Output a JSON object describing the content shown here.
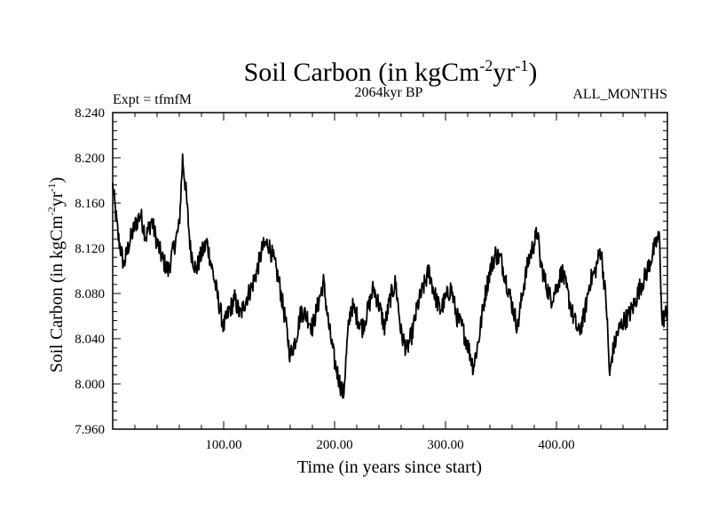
{
  "chart_data": {
    "type": "line",
    "title": {
      "main": "Soil Carbon (in kgCm",
      "sup1": "-2",
      "mid": "yr",
      "sup2": "-1",
      "close": ")"
    },
    "subtitle_left": "Expt = tfmfM",
    "subtitle_center": "2064kyr BP",
    "subtitle_right": "ALL_MONTHS",
    "xlabel": "Time (in years since start)",
    "ylabel": {
      "main": "Soil Carbon (in kgCm",
      "sup1": "-2",
      "mid": "yr",
      "sup2": "-1",
      "close": ")"
    },
    "xlim": [
      0,
      500
    ],
    "ylim": [
      7.96,
      8.24
    ],
    "x_ticks": [
      100,
      200,
      300,
      400
    ],
    "x_tick_labels": [
      "100.00",
      "200.00",
      "300.00",
      "400.00"
    ],
    "y_ticks": [
      7.96,
      8.0,
      8.04,
      8.08,
      8.12,
      8.16,
      8.2,
      8.24
    ],
    "y_tick_labels": [
      "7.960",
      "8.000",
      "8.040",
      "8.080",
      "8.120",
      "8.160",
      "8.200",
      "8.240"
    ],
    "series": [
      {
        "name": "Soil Carbon",
        "color": "#000000",
        "x": [
          0,
          5,
          10,
          15,
          20,
          25,
          30,
          35,
          40,
          45,
          50,
          55,
          60,
          63,
          66,
          70,
          75,
          80,
          85,
          90,
          95,
          100,
          105,
          110,
          115,
          120,
          125,
          130,
          135,
          140,
          145,
          150,
          155,
          160,
          165,
          170,
          175,
          180,
          185,
          190,
          195,
          200,
          205,
          208,
          212,
          215,
          220,
          225,
          230,
          235,
          240,
          245,
          250,
          255,
          260,
          265,
          270,
          275,
          280,
          285,
          290,
          295,
          300,
          305,
          310,
          315,
          320,
          325,
          330,
          335,
          340,
          345,
          350,
          355,
          360,
          365,
          370,
          375,
          380,
          383,
          385,
          390,
          395,
          400,
          405,
          410,
          415,
          420,
          425,
          430,
          435,
          440,
          445,
          448,
          450,
          455,
          460,
          465,
          470,
          475,
          480,
          485,
          490,
          493,
          495,
          500
        ],
        "y": [
          8.175,
          8.13,
          8.105,
          8.125,
          8.14,
          8.15,
          8.13,
          8.145,
          8.125,
          8.11,
          8.1,
          8.12,
          8.14,
          8.2,
          8.17,
          8.12,
          8.1,
          8.115,
          8.125,
          8.1,
          8.075,
          8.05,
          8.065,
          8.075,
          8.06,
          8.075,
          8.085,
          8.1,
          8.12,
          8.125,
          8.11,
          8.09,
          8.06,
          8.025,
          8.04,
          8.065,
          8.06,
          8.05,
          8.07,
          8.09,
          8.05,
          8.02,
          8.0,
          7.99,
          8.045,
          8.07,
          8.06,
          8.05,
          8.065,
          8.085,
          8.07,
          8.05,
          8.075,
          8.09,
          8.045,
          8.03,
          8.045,
          8.07,
          8.085,
          8.1,
          8.08,
          8.065,
          8.075,
          8.085,
          8.06,
          8.05,
          8.035,
          8.015,
          8.04,
          8.075,
          8.1,
          8.115,
          8.11,
          8.09,
          8.07,
          8.05,
          8.085,
          8.11,
          8.125,
          8.135,
          8.11,
          8.09,
          8.075,
          8.085,
          8.1,
          8.08,
          8.06,
          8.045,
          8.06,
          8.09,
          8.1,
          8.12,
          8.07,
          8.005,
          8.025,
          8.045,
          8.055,
          8.06,
          8.07,
          8.085,
          8.095,
          8.11,
          8.125,
          8.13,
          8.055,
          8.065
        ]
      }
    ]
  }
}
